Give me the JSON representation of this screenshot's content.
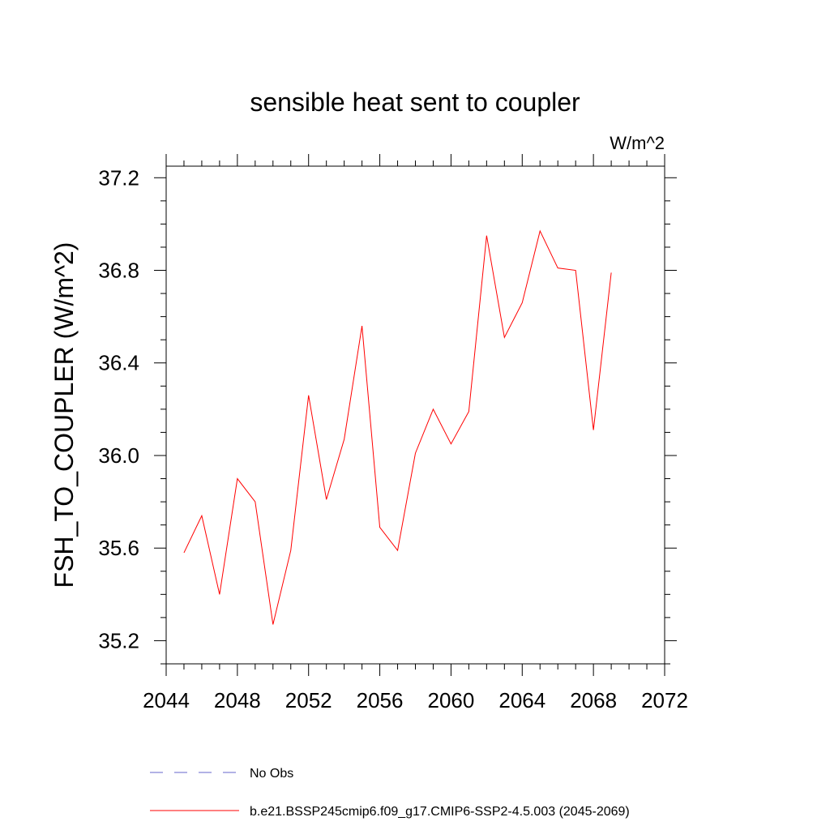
{
  "chart_data": {
    "type": "line",
    "title": "sensible heat sent to coupler",
    "units_label": "W/m^2",
    "ylabel": "FSH_TO_COUPLER  (W/m^2)",
    "xlabel": "",
    "xlim": [
      2044,
      2072
    ],
    "ylim": [
      35.1,
      37.25
    ],
    "x_ticks": [
      2044,
      2048,
      2052,
      2056,
      2060,
      2064,
      2068,
      2072
    ],
    "x_tick_labels": [
      "2044",
      "2048",
      "2052",
      "2056",
      "2060",
      "2064",
      "2068",
      "2072"
    ],
    "y_ticks": [
      35.2,
      35.6,
      36.0,
      36.4,
      36.8,
      37.2
    ],
    "y_tick_labels": [
      "35.2",
      "35.6",
      "36.0",
      "36.4",
      "36.8",
      "37.2"
    ],
    "grid": false,
    "legend_position": "bottom",
    "series": [
      {
        "name": "b.e21.BSSP245cmip6.f09_g17.CMIP6-SSP2-4.5.003 (2045-2069)",
        "color": "#ff0000",
        "style": "solid",
        "x": [
          2045,
          2046,
          2047,
          2048,
          2049,
          2050,
          2051,
          2052,
          2053,
          2054,
          2055,
          2056,
          2057,
          2058,
          2059,
          2060,
          2061,
          2062,
          2063,
          2064,
          2065,
          2066,
          2067,
          2068,
          2069
        ],
        "values": [
          35.58,
          35.74,
          35.4,
          35.9,
          35.8,
          35.27,
          35.59,
          36.26,
          35.81,
          36.07,
          36.56,
          35.69,
          35.59,
          36.01,
          36.2,
          36.05,
          36.19,
          36.95,
          36.51,
          36.66,
          36.97,
          36.81,
          36.8,
          36.11,
          36.79
        ]
      }
    ],
    "legend": [
      {
        "label": "No Obs",
        "color": "#6666cc",
        "style": "dashed"
      },
      {
        "label": "b.e21.BSSP245cmip6.f09_g17.CMIP6-SSP2-4.5.003 (2045-2069)",
        "color": "#ff0000",
        "style": "solid"
      }
    ]
  }
}
